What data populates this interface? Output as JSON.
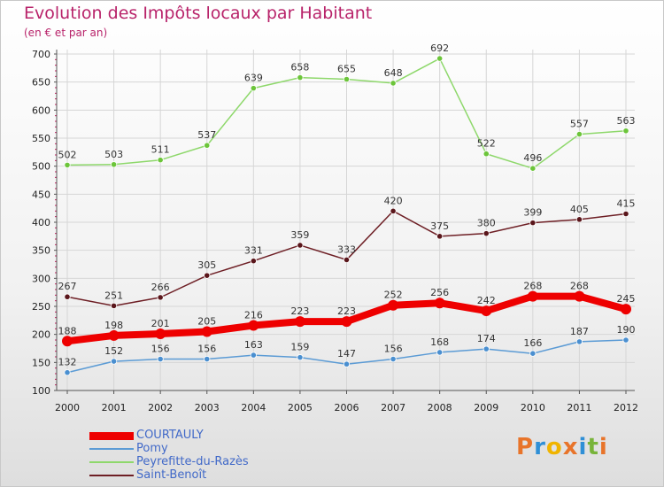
{
  "header": {
    "title": "Evolution des Impôts locaux par Habitant",
    "subtitle": "(en € et par an)"
  },
  "logo": {
    "text": "Proxiti",
    "colors": [
      "#e8742a",
      "#2f8fd6",
      "#f0b400",
      "#e8742a",
      "#2f8fd6",
      "#78b43a",
      "#e8742a"
    ]
  },
  "chart_data": {
    "type": "line",
    "x": [
      2000,
      2001,
      2002,
      2003,
      2004,
      2005,
      2006,
      2007,
      2008,
      2009,
      2010,
      2011,
      2012
    ],
    "ylim": [
      100,
      700
    ],
    "yticks": [
      100,
      150,
      200,
      250,
      300,
      350,
      400,
      450,
      500,
      550,
      600,
      650,
      700
    ],
    "grid": true,
    "legend_position": "bottom-left",
    "series": [
      {
        "name": "COURTAULY",
        "color": "#ee0000",
        "thick": true,
        "values": [
          188,
          198,
          201,
          205,
          216,
          223,
          223,
          252,
          256,
          242,
          268,
          268,
          245
        ]
      },
      {
        "name": "Pomy",
        "color": "#5b9bd5",
        "thick": false,
        "marker": "#4a8fd0",
        "values": [
          132,
          152,
          156,
          156,
          163,
          159,
          147,
          156,
          168,
          174,
          166,
          187,
          190
        ]
      },
      {
        "name": "Peyrefitte-du-Razès",
        "color": "#8ed86b",
        "thick": false,
        "marker": "#6cc53a",
        "values": [
          502,
          503,
          511,
          537,
          639,
          658,
          655,
          648,
          692,
          522,
          496,
          557,
          563
        ]
      },
      {
        "name": "Saint-Benoît",
        "color": "#6e1f25",
        "thick": false,
        "marker": "#5a161b",
        "values": [
          267,
          251,
          266,
          305,
          331,
          359,
          333,
          420,
          375,
          380,
          399,
          405,
          415
        ]
      }
    ]
  }
}
